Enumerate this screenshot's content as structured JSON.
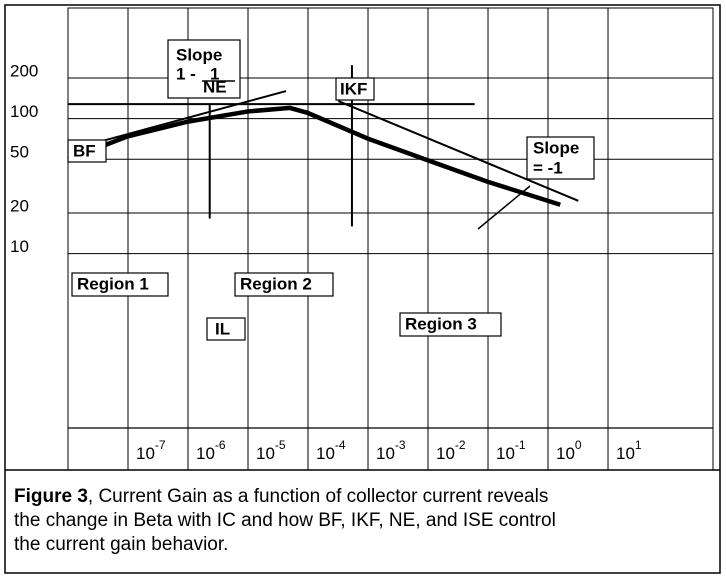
{
  "chart_data": {
    "type": "line",
    "xscale": "log",
    "yscale": "log",
    "xlim": [
      1e-08,
      562
    ],
    "ylim": [
      0.51,
      660
    ],
    "xticks": [
      {
        "value": 1e-07,
        "label": "10",
        "exponent": "-7"
      },
      {
        "value": 1e-06,
        "label": "10",
        "exponent": "-6"
      },
      {
        "value": 1e-05,
        "label": "10",
        "exponent": "-5"
      },
      {
        "value": 0.0001,
        "label": "10",
        "exponent": "-4"
      },
      {
        "value": 0.001,
        "label": "10",
        "exponent": "-3"
      },
      {
        "value": 0.01,
        "label": "10",
        "exponent": "-2"
      },
      {
        "value": 0.1,
        "label": "10",
        "exponent": "-1"
      },
      {
        "value": 1,
        "label": "10",
        "exponent": "0"
      },
      {
        "value": 10,
        "label": "10",
        "exponent": "1"
      }
    ],
    "yticks": [
      10,
      20,
      50,
      100,
      200
    ],
    "grid": true,
    "series": [
      {
        "color": "#000000",
        "weight": "bold",
        "x": [
          1e-08,
          1e-07,
          1e-06,
          1e-05,
          5e-05,
          0.0001,
          0.001,
          0.01,
          0.1,
          1.6
        ],
        "values": [
          50,
          74,
          95,
          113,
          120,
          110,
          71,
          49,
          34,
          23
        ]
      },
      {
        "color": "#000000",
        "weight": "thin",
        "x": [
          1.47e-08,
          4.3e-05
        ],
        "values": [
          61,
          160
        ]
      },
      {
        "color": "#000000",
        "weight": "thin",
        "x": [
          1e-08,
          0.06
        ],
        "values": [
          128,
          128
        ]
      },
      {
        "color": "#000000",
        "weight": "thin",
        "x": [
          0.00032,
          3.2
        ],
        "values": [
          135,
          24.6
        ]
      },
      {
        "color": "#000000",
        "weight": "thin",
        "x": [
          2.3e-06,
          2.3e-06
        ],
        "values": [
          128,
          18.2
        ]
      },
      {
        "color": "#000000",
        "weight": "thin",
        "x": [
          0.00054,
          0.00054
        ],
        "values": [
          249,
          15.9
        ]
      }
    ],
    "annotations": {
      "bf": "BF",
      "slope1": [
        "Slope",
        "1 -",
        "1",
        "NE"
      ],
      "ikf": "IKF",
      "slope2": [
        "Slope",
        "= -1"
      ],
      "region1": "Region 1",
      "region2": "Region 2",
      "region3": "Region 3",
      "il": "IL"
    }
  },
  "caption": {
    "bold": "Figure 3",
    "lines": [
      ", Current Gain as a function of collector current reveals",
      "the change in Beta with IC and how BF, IKF, NE, and ISE control",
      "the current gain behavior."
    ]
  }
}
